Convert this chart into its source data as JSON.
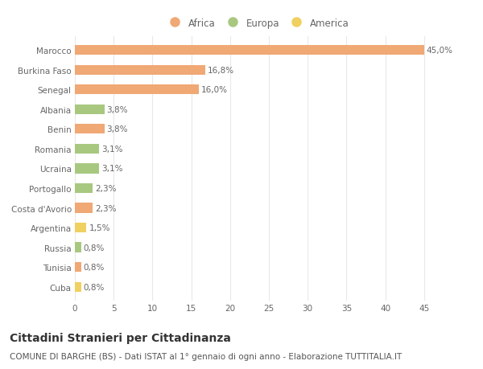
{
  "categories": [
    "Cuba",
    "Tunisia",
    "Russia",
    "Argentina",
    "Costa d'Avorio",
    "Portogallo",
    "Ucraina",
    "Romania",
    "Benin",
    "Albania",
    "Senegal",
    "Burkina Faso",
    "Marocco"
  ],
  "values": [
    0.8,
    0.8,
    0.8,
    1.5,
    2.3,
    2.3,
    3.1,
    3.1,
    3.8,
    3.8,
    16.0,
    16.8,
    45.0
  ],
  "labels": [
    "0,8%",
    "0,8%",
    "0,8%",
    "1,5%",
    "2,3%",
    "2,3%",
    "3,1%",
    "3,1%",
    "3,8%",
    "3,8%",
    "16,0%",
    "16,8%",
    "45,0%"
  ],
  "continent": [
    "America",
    "Africa",
    "Europa",
    "America",
    "Africa",
    "Europa",
    "Europa",
    "Europa",
    "Africa",
    "Europa",
    "Africa",
    "Africa",
    "Africa"
  ],
  "colors": {
    "Africa": "#F0A875",
    "Europa": "#A8C880",
    "America": "#F0D060"
  },
  "legend_order": [
    "Africa",
    "Europa",
    "America"
  ],
  "title": "Cittadini Stranieri per Cittadinanza",
  "subtitle": "COMUNE DI BARGHE (BS) - Dati ISTAT al 1° gennaio di ogni anno - Elaborazione TUTTITALIA.IT",
  "xlim": [
    0,
    47
  ],
  "xticks": [
    0,
    5,
    10,
    15,
    20,
    25,
    30,
    35,
    40,
    45
  ],
  "background_color": "#ffffff",
  "grid_color": "#e8e8e8",
  "bar_height": 0.5,
  "title_fontsize": 10,
  "subtitle_fontsize": 7.5,
  "label_fontsize": 7.5,
  "tick_fontsize": 7.5,
  "legend_fontsize": 8.5
}
